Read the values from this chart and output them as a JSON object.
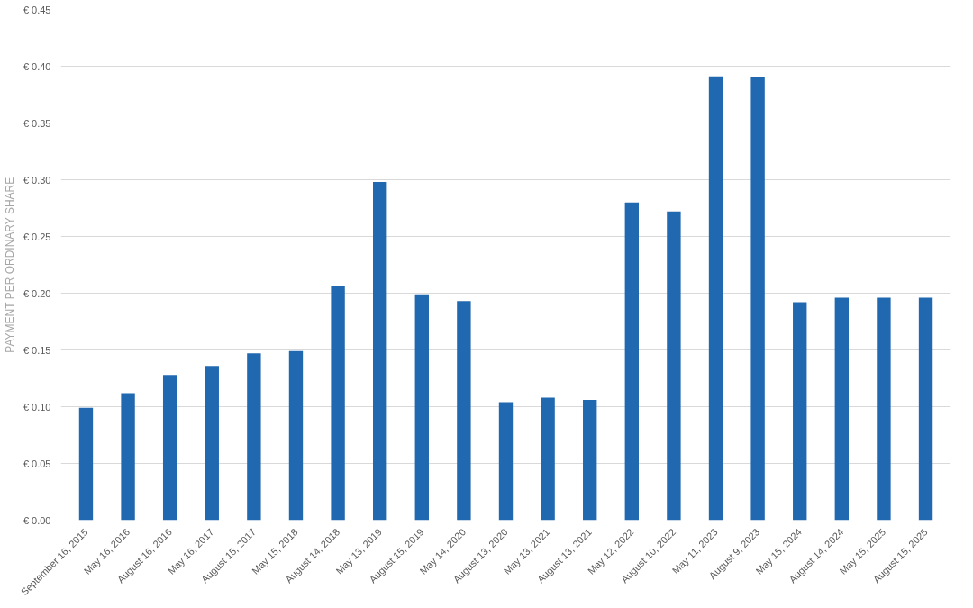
{
  "chart_data": {
    "type": "bar",
    "ylabel": "PAYMENT PER ORDINARY SHARE",
    "categories": [
      "September 16, 2015",
      "May 16, 2016",
      "August 16, 2016",
      "May 16, 2017",
      "August 15, 2017",
      "May 15, 2018",
      "August 14, 2018",
      "May 13, 2019",
      "August 15, 2019",
      "May 14, 2020",
      "August 13, 2020",
      "May 13, 2021",
      "August 13, 2021",
      "May 12, 2022",
      "August 10, 2022",
      "May 11, 2023",
      "August 9, 2023",
      "May 15, 2024",
      "August 14, 2024",
      "May 15, 2025",
      "August 15, 2025"
    ],
    "values": [
      0.099,
      0.112,
      0.128,
      0.136,
      0.147,
      0.149,
      0.206,
      0.298,
      0.199,
      0.193,
      0.104,
      0.108,
      0.106,
      0.28,
      0.272,
      0.391,
      0.39,
      0.192,
      0.196,
      0.196,
      0.196
    ],
    "color": "#2068b0",
    "ylim": [
      0,
      0.45
    ],
    "yticks": [
      {
        "value": 0,
        "label": "€ 0.00"
      },
      {
        "value": 0.05,
        "label": "€ 0.05"
      },
      {
        "value": 0.1,
        "label": "€ 0.10"
      },
      {
        "value": 0.15,
        "label": "€ 0.15"
      },
      {
        "value": 0.2,
        "label": "€ 0.20"
      },
      {
        "value": 0.25,
        "label": "€ 0.25"
      },
      {
        "value": 0.3,
        "label": "€ 0.30"
      },
      {
        "value": 0.35,
        "label": "€ 0.35"
      },
      {
        "value": 0.4,
        "label": "€ 0.40"
      },
      {
        "value": 0.45,
        "label": "€ 0.45"
      }
    ],
    "grid": "y"
  }
}
